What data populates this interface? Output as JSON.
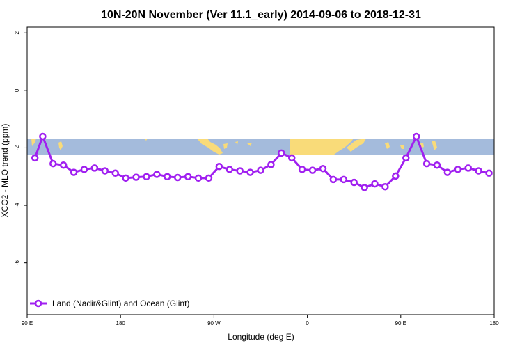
{
  "chart_data": {
    "type": "line",
    "title": "10N-20N November (Ver 11.1_early)   2014-09-06 to 2018-12-31",
    "xlabel": "Longitude (deg E)",
    "ylabel": "XCO2 - MLO trend (ppm)",
    "xlim": [
      90,
      540
    ],
    "ylim": [
      -7.8,
      2.2
    ],
    "x_ticks": [
      {
        "value": 90,
        "label": "90 E"
      },
      {
        "value": 180,
        "label": "180"
      },
      {
        "value": 270,
        "label": "90 W"
      },
      {
        "value": 360,
        "label": "0"
      },
      {
        "value": 450,
        "label": "90 E"
      },
      {
        "value": 540,
        "label": "180"
      }
    ],
    "y_ticks": [
      {
        "value": 2,
        "label": "2"
      },
      {
        "value": 0,
        "label": "0"
      },
      {
        "value": -2,
        "label": "-2"
      },
      {
        "value": -4,
        "label": "-4"
      },
      {
        "value": -6,
        "label": "-6"
      }
    ],
    "map_band": {
      "ymin": -2.25,
      "ymax": -1.7,
      "ocean_color": "#a4bbdc",
      "land_color": "#f9db79"
    },
    "legend": {
      "position": "bottom-left"
    },
    "series": [
      {
        "name": "Land (Nadir&Glint) and Ocean (Glint)",
        "color": "#a020f0",
        "x": [
          97.5,
          105,
          115,
          125,
          135,
          145,
          155,
          165,
          175,
          185,
          195,
          205,
          215,
          225,
          235,
          245,
          255,
          265,
          275,
          285,
          295,
          305,
          315,
          325,
          335,
          345,
          355,
          365,
          375,
          385,
          395,
          405,
          415,
          425,
          435,
          445,
          455,
          465,
          475,
          485,
          495,
          505,
          515,
          525,
          535
        ],
        "y": [
          -2.35,
          -1.6,
          -2.55,
          -2.6,
          -2.85,
          -2.75,
          -2.7,
          -2.8,
          -2.88,
          -3.05,
          -3.02,
          -3.0,
          -2.92,
          -3.0,
          -3.03,
          -3.0,
          -3.05,
          -3.05,
          -2.65,
          -2.75,
          -2.8,
          -2.85,
          -2.78,
          -2.58,
          -2.18,
          -2.35,
          -2.75,
          -2.78,
          -2.72,
          -3.1,
          -3.1,
          -3.2,
          -3.38,
          -3.25,
          -3.35,
          -2.98,
          -2.35,
          -1.6,
          -2.55,
          -2.6,
          -2.85,
          -2.75,
          -2.7,
          -2.8,
          -2.88
        ]
      }
    ]
  }
}
